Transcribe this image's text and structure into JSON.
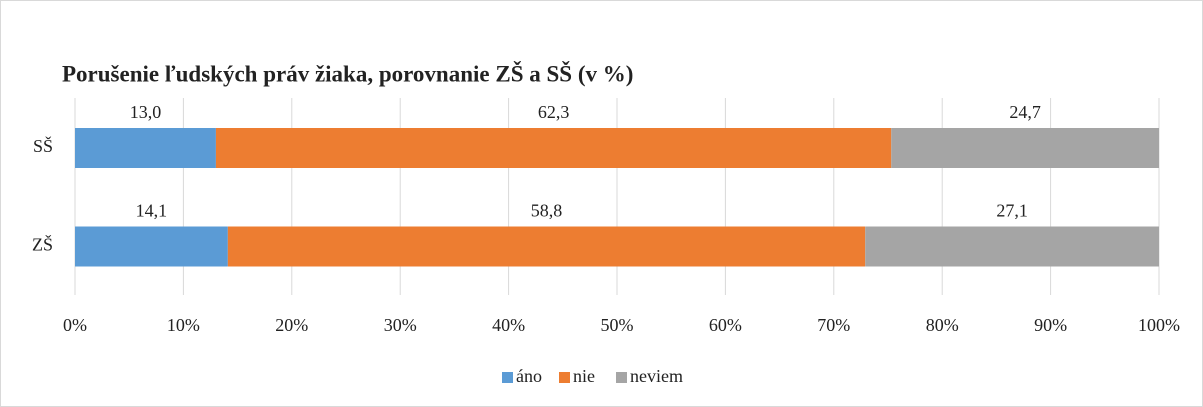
{
  "chart_data": {
    "type": "stacked_bar_horizontal",
    "title": "Porušenie ľudských práv žiaka, porovnanie ZŠ a SŠ (v %)",
    "categories": [
      "SŠ",
      "ZŠ"
    ],
    "series": [
      {
        "name": "áno",
        "color": "#5b9bd5",
        "values": [
          13.0,
          14.1
        ],
        "value_labels": [
          "13,0",
          "14,1"
        ]
      },
      {
        "name": "nie",
        "color": "#ed7d31",
        "values": [
          62.3,
          58.8
        ],
        "value_labels": [
          "62,3",
          "58,8"
        ]
      },
      {
        "name": "neviem",
        "color": "#a5a5a5",
        "values": [
          24.7,
          27.1
        ],
        "value_labels": [
          "24,7",
          "27,1"
        ]
      }
    ],
    "xlim": [
      0,
      100
    ],
    "xticks": [
      {
        "value": 0,
        "label": "0%"
      },
      {
        "value": 10,
        "label": "10%"
      },
      {
        "value": 20,
        "label": "20%"
      },
      {
        "value": 30,
        "label": "30%"
      },
      {
        "value": 40,
        "label": "40%"
      },
      {
        "value": 50,
        "label": "50%"
      },
      {
        "value": 60,
        "label": "60%"
      },
      {
        "value": 70,
        "label": "70%"
      },
      {
        "value": 80,
        "label": "80%"
      },
      {
        "value": 90,
        "label": "90%"
      },
      {
        "value": 100,
        "label": "100%"
      }
    ],
    "grid": true,
    "legend": "bottom"
  }
}
